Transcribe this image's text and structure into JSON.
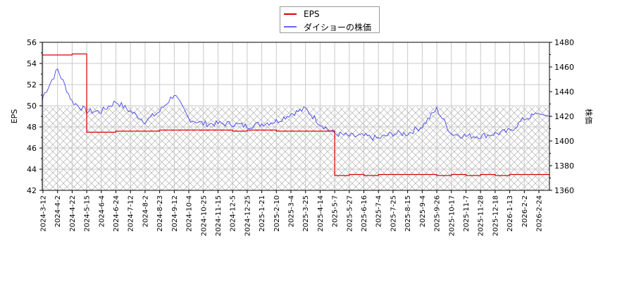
{
  "legend": {
    "items": [
      {
        "label": "EPS",
        "color": "#dd0000"
      },
      {
        "label": "ダイショーの株価",
        "color": "#4444ee"
      }
    ]
  },
  "axes": {
    "left_title": "EPS",
    "right_title": "株価",
    "left_ticks": [
      "42",
      "44",
      "46",
      "48",
      "50",
      "52",
      "54",
      "56"
    ],
    "right_ticks": [
      "1360",
      "1380",
      "1400",
      "1420",
      "1440",
      "1460",
      "1480"
    ],
    "x_ticks": [
      "2024-3-12",
      "2024-4-2",
      "2024-4-22",
      "2024-5-15",
      "2024-6-4",
      "2024-6-24",
      "2024-7-12",
      "2024-8-2",
      "2024-8-23",
      "2024-9-12",
      "2024-10-4",
      "2024-10-25",
      "2024-11-15",
      "2024-12-5",
      "2024-12-25",
      "2025-1-21",
      "2025-2-10",
      "2025-3-4",
      "2025-3-25",
      "2025-4-14",
      "2025-5-7",
      "2025-5-27",
      "2025-6-16",
      "2025-7-4",
      "2025-7-25",
      "2025-8-15",
      "2025-9-4",
      "2025-9-26",
      "2025-10-17",
      "2025-11-7",
      "2025-11-28",
      "2025-12-18",
      "2026-1-13",
      "2026-2-2",
      "2026-2-24"
    ]
  },
  "chart_data": {
    "type": "line",
    "title": "",
    "xlabel": "",
    "ylabel": "EPS",
    "ylabel_right": "株価",
    "ylim": [
      42,
      56
    ],
    "ylim_right": [
      1360,
      1480
    ],
    "grid": true,
    "legend_position": "top-center",
    "hatched_band_eps": [
      42,
      49.9
    ],
    "x": [
      "2024-3-12",
      "2024-4-2",
      "2024-4-22",
      "2024-5-15",
      "2024-6-4",
      "2024-6-24",
      "2024-7-12",
      "2024-8-2",
      "2024-8-23",
      "2024-9-12",
      "2024-10-4",
      "2024-10-25",
      "2024-11-15",
      "2024-12-5",
      "2024-12-25",
      "2025-1-21",
      "2025-2-10",
      "2025-3-4",
      "2025-3-25",
      "2025-4-14",
      "2025-5-7",
      "2025-5-27",
      "2025-6-16",
      "2025-7-4",
      "2025-7-25",
      "2025-8-15",
      "2025-9-4",
      "2025-9-26",
      "2025-10-17",
      "2025-11-7",
      "2025-11-28",
      "2025-12-18",
      "2026-1-13",
      "2026-2-2",
      "2026-2-24"
    ],
    "series": [
      {
        "name": "EPS",
        "axis": "left",
        "color": "#dd0000",
        "values": [
          54.8,
          54.8,
          54.9,
          47.5,
          47.5,
          47.6,
          47.6,
          47.6,
          47.7,
          47.7,
          47.7,
          47.7,
          47.7,
          47.6,
          47.7,
          47.7,
          47.6,
          47.6,
          47.6,
          47.6,
          43.4,
          43.5,
          43.4,
          43.5,
          43.5,
          43.5,
          43.5,
          43.4,
          43.5,
          43.4,
          43.5,
          43.4,
          43.5,
          43.5,
          43.5
        ]
      },
      {
        "name": "ダイショーの株価",
        "axis": "right",
        "color": "#4444ee",
        "values": [
          1436,
          1458,
          1432,
          1424,
          1424,
          1432,
          1424,
          1416,
          1424,
          1438,
          1418,
          1414,
          1414,
          1414,
          1412,
          1414,
          1416,
          1422,
          1426,
          1414,
          1406,
          1404,
          1404,
          1402,
          1406,
          1406,
          1412,
          1426,
          1406,
          1404,
          1404,
          1406,
          1408,
          1418,
          1422
        ]
      }
    ]
  }
}
